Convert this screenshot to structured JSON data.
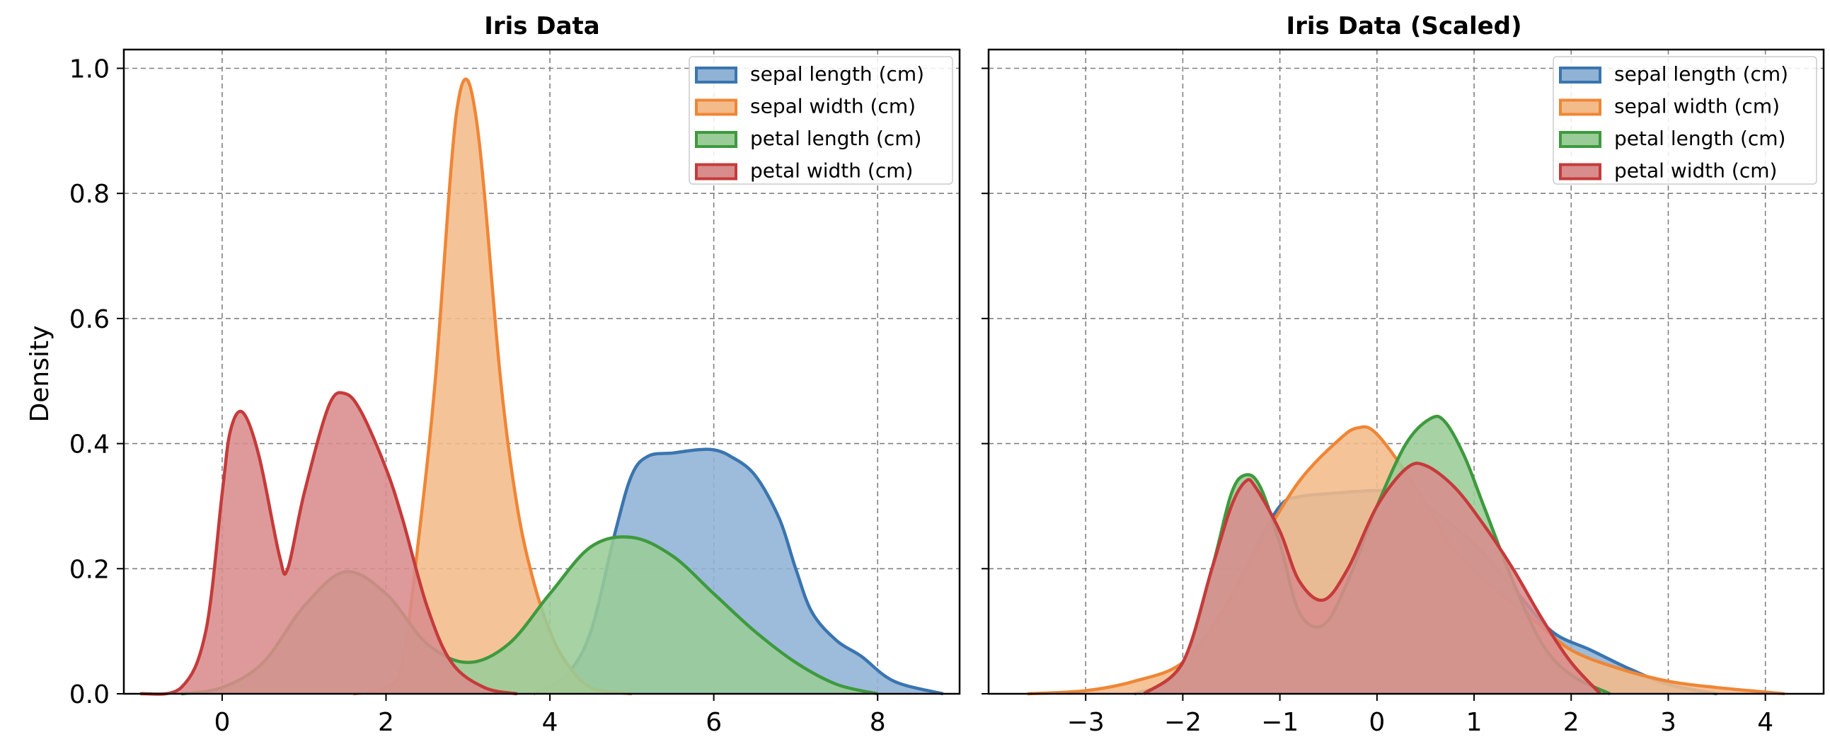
{
  "chart_data": [
    {
      "type": "area",
      "title": "Iris Data",
      "xlabel": "",
      "ylabel": "Density",
      "xlim": [
        -1.2,
        9.0
      ],
      "ylim": [
        0.0,
        1.03
      ],
      "xticks": [
        0,
        2,
        4,
        6,
        8
      ],
      "xtick_labels": [
        "0",
        "2",
        "4",
        "6",
        "8"
      ],
      "yticks": [
        0.0,
        0.2,
        0.4,
        0.6,
        0.8,
        1.0
      ],
      "ytick_labels": [
        "0.0",
        "0.2",
        "0.4",
        "0.6",
        "0.8",
        "1.0"
      ],
      "grid": true,
      "legend": "top-right",
      "series": [
        {
          "name": "sepal length (cm)",
          "color": "#3a75af",
          "fill": "#8fb2d5",
          "x": [
            3.8,
            4.2,
            4.5,
            4.8,
            5.0,
            5.2,
            5.5,
            5.8,
            6.0,
            6.2,
            6.5,
            6.8,
            7.0,
            7.2,
            7.5,
            7.8,
            8.2,
            8.8
          ],
          "y": [
            0.0,
            0.03,
            0.1,
            0.26,
            0.35,
            0.38,
            0.385,
            0.39,
            0.39,
            0.38,
            0.35,
            0.28,
            0.2,
            0.13,
            0.085,
            0.06,
            0.02,
            0.0
          ]
        },
        {
          "name": "sepal width (cm)",
          "color": "#ef8636",
          "fill": "#f4bb8a",
          "x": [
            1.6,
            2.0,
            2.2,
            2.4,
            2.6,
            2.8,
            2.9,
            3.0,
            3.1,
            3.2,
            3.4,
            3.6,
            3.8,
            4.0,
            4.2,
            4.5,
            5.0
          ],
          "y": [
            0.0,
            0.01,
            0.05,
            0.25,
            0.5,
            0.85,
            0.96,
            0.98,
            0.92,
            0.8,
            0.5,
            0.3,
            0.18,
            0.1,
            0.05,
            0.01,
            0.0
          ]
        },
        {
          "name": "petal length (cm)",
          "color": "#3e9a3e",
          "fill": "#9acc97",
          "x": [
            -0.5,
            0.0,
            0.5,
            1.0,
            1.5,
            2.0,
            2.5,
            3.0,
            3.5,
            4.0,
            4.5,
            5.0,
            5.5,
            6.0,
            6.5,
            7.0,
            7.5,
            8.0
          ],
          "y": [
            0.0,
            0.01,
            0.05,
            0.14,
            0.195,
            0.16,
            0.08,
            0.05,
            0.08,
            0.16,
            0.235,
            0.25,
            0.22,
            0.16,
            0.1,
            0.05,
            0.015,
            0.0
          ]
        },
        {
          "name": "petal width (cm)",
          "color": "#c53b3b",
          "fill": "#d98c8c",
          "x": [
            -1.0,
            -0.5,
            -0.2,
            0.0,
            0.1,
            0.25,
            0.45,
            0.7,
            0.8,
            1.0,
            1.3,
            1.5,
            1.7,
            2.0,
            2.2,
            2.5,
            2.8,
            3.2,
            3.6
          ],
          "y": [
            0.0,
            0.01,
            0.1,
            0.32,
            0.42,
            0.45,
            0.38,
            0.22,
            0.2,
            0.32,
            0.46,
            0.48,
            0.45,
            0.36,
            0.28,
            0.14,
            0.05,
            0.01,
            0.0
          ]
        }
      ]
    },
    {
      "type": "area",
      "title": "Iris Data (Scaled)",
      "xlabel": "",
      "ylabel": "",
      "xlim": [
        -4.0,
        4.6
      ],
      "ylim": [
        0.0,
        1.03
      ],
      "xticks": [
        -3,
        -2,
        -1,
        0,
        1,
        2,
        3,
        4
      ],
      "xtick_labels": [
        "−3",
        "−2",
        "−1",
        "0",
        "1",
        "2",
        "3",
        "4"
      ],
      "grid": true,
      "legend": "top-right",
      "series": [
        {
          "name": "sepal length (cm)",
          "color": "#3a75af",
          "fill": "#8fb2d5",
          "x": [
            -2.5,
            -2.0,
            -1.6,
            -1.3,
            -1.0,
            -0.8,
            -0.5,
            0.0,
            0.3,
            0.6,
            1.0,
            1.4,
            1.8,
            2.2,
            2.6,
            3.0,
            3.5
          ],
          "y": [
            0.0,
            0.03,
            0.12,
            0.22,
            0.3,
            0.315,
            0.32,
            0.325,
            0.32,
            0.29,
            0.24,
            0.17,
            0.1,
            0.07,
            0.04,
            0.015,
            0.0
          ]
        },
        {
          "name": "sepal width (cm)",
          "color": "#ef8636",
          "fill": "#f4bb8a",
          "x": [
            -3.6,
            -3.0,
            -2.5,
            -2.0,
            -1.6,
            -1.2,
            -0.8,
            -0.4,
            -0.2,
            0.0,
            0.4,
            0.8,
            1.2,
            1.6,
            2.0,
            2.5,
            3.0,
            3.5,
            4.2
          ],
          "y": [
            0.0,
            0.005,
            0.02,
            0.05,
            0.13,
            0.24,
            0.34,
            0.405,
            0.425,
            0.415,
            0.33,
            0.23,
            0.17,
            0.12,
            0.07,
            0.04,
            0.02,
            0.01,
            0.0
          ]
        },
        {
          "name": "petal length (cm)",
          "color": "#3e9a3e",
          "fill": "#9acc97",
          "x": [
            -2.4,
            -2.0,
            -1.7,
            -1.5,
            -1.35,
            -1.2,
            -1.0,
            -0.8,
            -0.55,
            -0.3,
            0.0,
            0.3,
            0.55,
            0.7,
            0.9,
            1.1,
            1.4,
            1.7,
            2.0,
            2.4
          ],
          "y": [
            0.0,
            0.05,
            0.2,
            0.32,
            0.35,
            0.33,
            0.24,
            0.13,
            0.11,
            0.18,
            0.3,
            0.4,
            0.44,
            0.435,
            0.38,
            0.3,
            0.18,
            0.08,
            0.03,
            0.0
          ]
        },
        {
          "name": "petal width (cm)",
          "color": "#c53b3b",
          "fill": "#d98c8c",
          "x": [
            -2.4,
            -2.0,
            -1.7,
            -1.5,
            -1.35,
            -1.25,
            -1.0,
            -0.8,
            -0.55,
            -0.3,
            0.0,
            0.3,
            0.5,
            0.8,
            1.1,
            1.4,
            1.7,
            2.0,
            2.3
          ],
          "y": [
            0.0,
            0.05,
            0.2,
            0.3,
            0.34,
            0.33,
            0.26,
            0.18,
            0.15,
            0.2,
            0.3,
            0.36,
            0.365,
            0.33,
            0.27,
            0.2,
            0.12,
            0.05,
            0.0
          ]
        }
      ]
    }
  ]
}
